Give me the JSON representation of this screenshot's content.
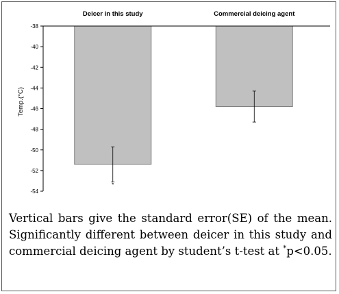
{
  "chart_data": {
    "type": "bar",
    "categories": [
      "Deicer in this study",
      "Commercial deicing agent"
    ],
    "values": [
      -51.4,
      -45.8
    ],
    "errors": [
      1.7,
      1.5
    ],
    "significance_markers": [
      "*",
      ""
    ],
    "ylabel": "Temp.(°C)",
    "ylim": [
      -54,
      -38
    ],
    "yticks": [
      "-38",
      "-40",
      "-42",
      "-44",
      "-46",
      "-48",
      "-50",
      "-52",
      "-54"
    ],
    "category_labels_position": "top",
    "grid": false,
    "colors": {
      "bar": "#c0c0c0",
      "bar_edge": "#7f7f7f",
      "axis": "#000000"
    }
  },
  "caption": {
    "text_main": "Vertical bars give the standard error(SE) of the mean. Significantly different between deicer in this study and commercial deicing agent by student’s t-test at ",
    "star": "*",
    "text_end": "p<0.05."
  }
}
